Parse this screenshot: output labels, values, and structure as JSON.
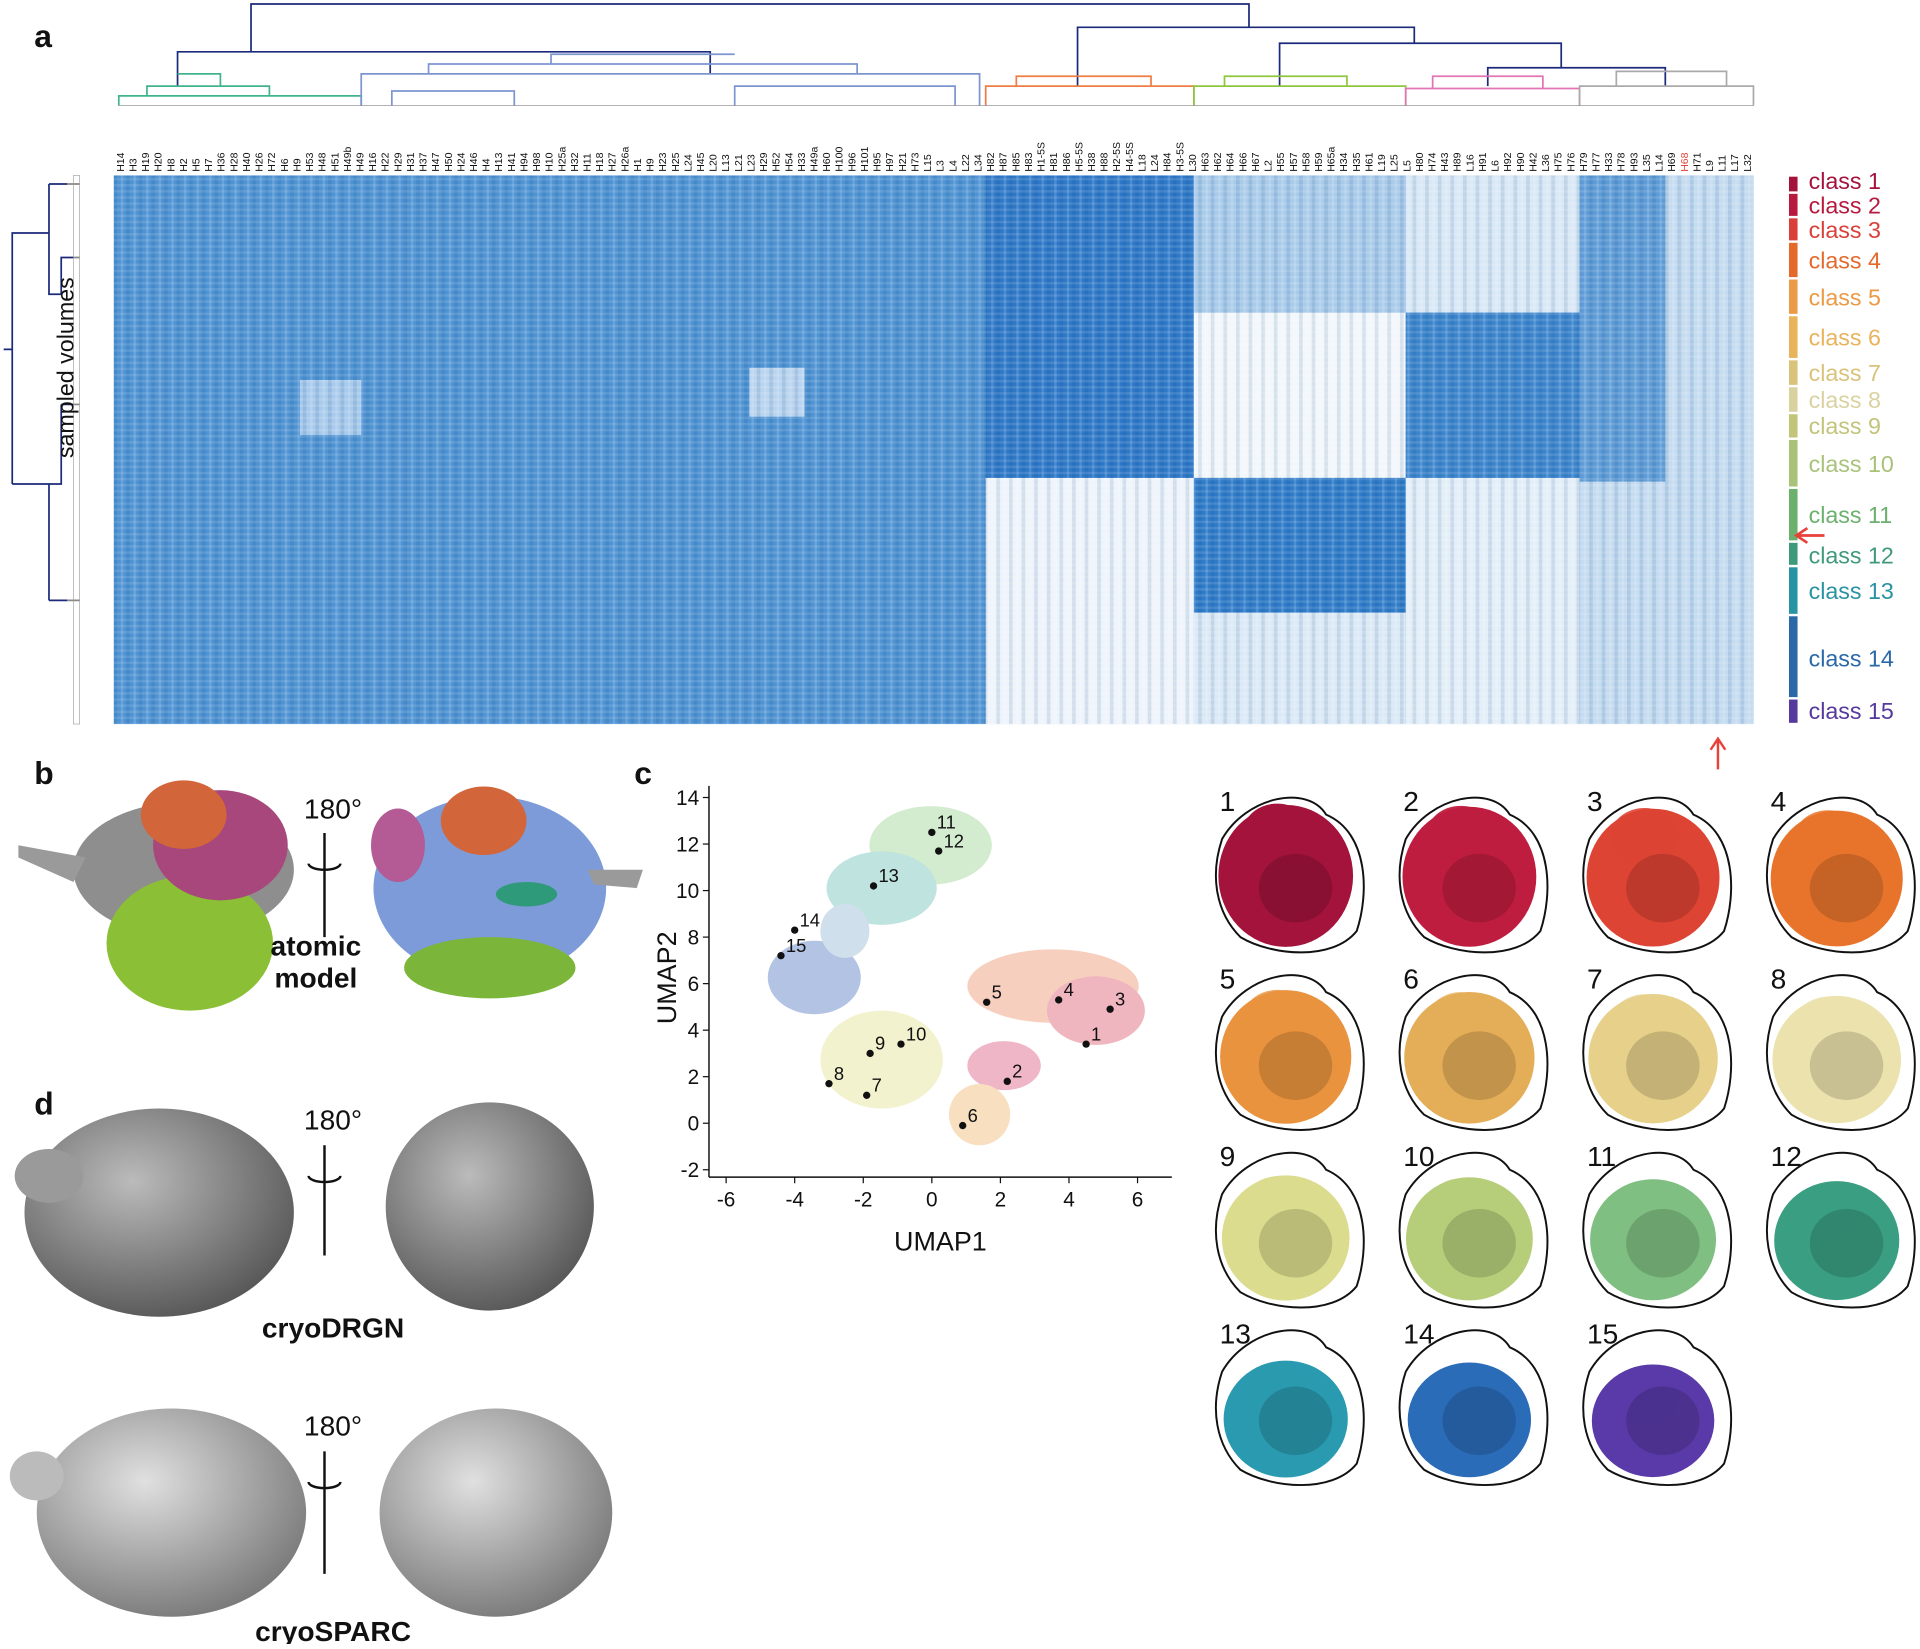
{
  "panel_labels": [
    "a",
    "b",
    "c",
    "d"
  ],
  "heatmap": {
    "y_label": "sampled volumes",
    "columns": [
      "H14",
      "H3",
      "H19",
      "H20",
      "H8",
      "H2",
      "H5",
      "H7",
      "H36",
      "H28",
      "H40",
      "H26",
      "H72",
      "H6",
      "H9",
      "H53",
      "H48",
      "H51",
      "H49b",
      "H49",
      "H16",
      "H22",
      "H29",
      "H31",
      "H37",
      "H47",
      "H50",
      "H24",
      "H46",
      "H4",
      "H13",
      "H41",
      "H94",
      "H98",
      "H10",
      "H25a",
      "H32",
      "H11",
      "H18",
      "H27",
      "H26a",
      "H1",
      "H9",
      "H23",
      "H25",
      "L24",
      "H45",
      "L20",
      "L13",
      "L21",
      "L23",
      "H29",
      "H52",
      "H54",
      "H33",
      "H49a",
      "H60",
      "H100",
      "H96",
      "H101",
      "H95",
      "H97",
      "H21",
      "H73",
      "L15",
      "L3",
      "L4",
      "L22",
      "L34",
      "H82",
      "H87",
      "H85",
      "H83",
      "H1-5S",
      "H81",
      "H86",
      "H5-5S",
      "H38",
      "H88",
      "H2-5S",
      "H4-5S",
      "L18",
      "L24",
      "H84",
      "H3-5S",
      "L30",
      "H63",
      "H62",
      "H64",
      "H66",
      "H67",
      "L2",
      "H55",
      "H57",
      "H58",
      "H59",
      "H65a",
      "H34",
      "H35",
      "H61",
      "L19",
      "L25",
      "L5",
      "H80",
      "H74",
      "H43",
      "H89",
      "L16",
      "H91",
      "L6",
      "H92",
      "H90",
      "H42",
      "L36",
      "H75",
      "H76",
      "H79",
      "H77",
      "H33",
      "H78",
      "H93",
      "L35",
      "L14",
      "H69",
      {
        "label": "H68",
        "color": "#e8413a"
      },
      "H71",
      "L9",
      "L11",
      "L17",
      "L32"
    ],
    "classes": [
      {
        "label": "class 1",
        "color": "#a3133c"
      },
      {
        "label": "class 2",
        "color": "#b81a3f"
      },
      {
        "label": "class 3",
        "color": "#d9403a"
      },
      {
        "label": "class 4",
        "color": "#e46a2c"
      },
      {
        "label": "class 5",
        "color": "#eb9a45"
      },
      {
        "label": "class 6",
        "color": "#e9b35c"
      },
      {
        "label": "class 7",
        "color": "#d9c27a"
      },
      {
        "label": "class 8",
        "color": "#d9d2a0"
      },
      {
        "label": "class 9",
        "color": "#c2c47a"
      },
      {
        "label": "class 10",
        "color": "#a9c27a"
      },
      {
        "label": "class 11",
        "color": "#6cb06e"
      },
      {
        "label": "class 12",
        "color": "#3f9a7c"
      },
      {
        "label": "class 13",
        "color": "#2a93a3"
      },
      {
        "label": "class 14",
        "color": "#2a68a8"
      },
      {
        "label": "class 15",
        "color": "#55399c"
      }
    ]
  },
  "structures": {
    "rotation_labels": [
      "180°",
      "180°",
      "180°"
    ],
    "atomic_model": [
      "atomic",
      "model"
    ],
    "cryodrgn": "cryoDRGN",
    "cryosparc": "cryoSPARC"
  },
  "chart_data": {
    "type": "scatter",
    "x_label": "UMAP1",
    "y_label": "UMAP2",
    "x": [
      4.5,
      2.2,
      5.2,
      3.7,
      1.6,
      0.9,
      -1.9,
      -3.0,
      -1.8,
      -0.9,
      0.0,
      0.2,
      -1.7,
      -4.0,
      -4.4
    ],
    "values": [
      3.4,
      1.8,
      4.9,
      5.3,
      5.2,
      -0.1,
      1.2,
      1.7,
      3.0,
      3.4,
      12.5,
      11.7,
      10.2,
      8.3,
      7.2
    ],
    "point_labels": [
      "1",
      "2",
      "3",
      "4",
      "5",
      "6",
      "7",
      "8",
      "9",
      "10",
      "11",
      "12",
      "13",
      "14",
      "15"
    ],
    "color": "#111111",
    "xlim": [
      -6.5,
      7
    ],
    "ylim": [
      -2,
      14.5
    ],
    "xticks": [
      -6,
      -4,
      -2,
      0,
      2,
      4,
      6
    ],
    "yticks": [
      -2,
      0,
      2,
      4,
      6,
      8,
      10,
      12,
      14
    ]
  },
  "maps": [
    {
      "label": "1",
      "color": "#a3133c"
    },
    {
      "label": "2",
      "color": "#bf1d3f"
    },
    {
      "label": "3",
      "color": "#dd4433"
    },
    {
      "label": "4",
      "color": "#e8742c"
    },
    {
      "label": "5",
      "color": "#e9933e"
    },
    {
      "label": "6",
      "color": "#e4ad58"
    },
    {
      "label": "7",
      "color": "#e6d08a"
    },
    {
      "label": "8",
      "color": "#ece2ad"
    },
    {
      "label": "9",
      "color": "#dcdc8e"
    },
    {
      "label": "10",
      "color": "#b6ce7a"
    },
    {
      "label": "11",
      "color": "#7fbf82"
    },
    {
      "label": "12",
      "color": "#3a9e82"
    },
    {
      "label": "13",
      "color": "#2a9ab0"
    },
    {
      "label": "14",
      "color": "#2a6cb8"
    },
    {
      "label": "15",
      "color": "#5a3aa8"
    }
  ]
}
